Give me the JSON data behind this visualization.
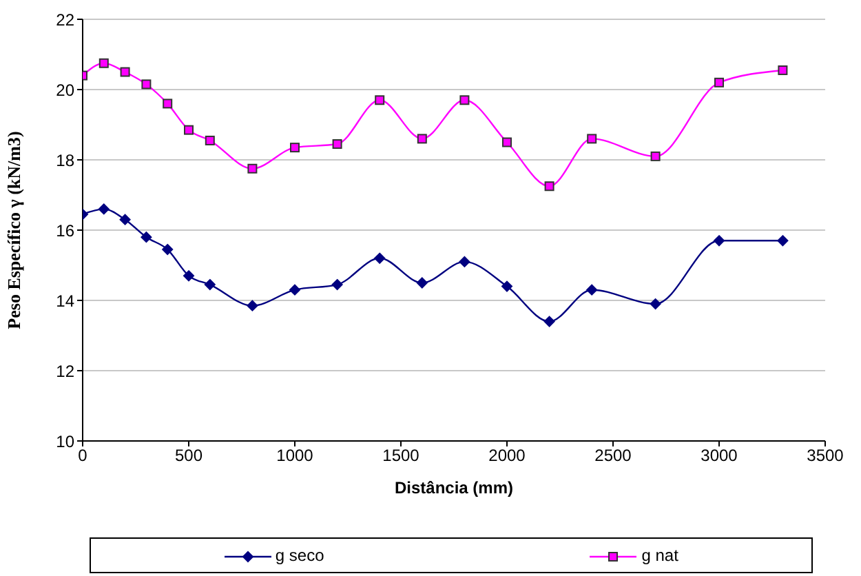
{
  "chart_data": {
    "type": "line",
    "xlabel": "Distância (mm)",
    "ylabel": "Peso Específico  γ (kN/m3)",
    "x": [
      0,
      100,
      200,
      300,
      400,
      500,
      600,
      800,
      1000,
      1200,
      1400,
      1600,
      1800,
      2000,
      2200,
      2400,
      2700,
      3000,
      3300
    ],
    "xlim": [
      0,
      3500
    ],
    "xticks": [
      0,
      500,
      1000,
      1500,
      2000,
      2500,
      3000,
      3500
    ],
    "ylim": [
      10,
      22
    ],
    "yticks": [
      10,
      12,
      14,
      16,
      18,
      20,
      22
    ],
    "grid": "y",
    "legend": "bottom",
    "series": [
      {
        "name": "g seco",
        "color": "#000080",
        "marker": "diamond",
        "values": [
          16.45,
          16.6,
          16.3,
          15.8,
          15.45,
          14.7,
          14.45,
          13.85,
          14.3,
          14.45,
          15.2,
          14.5,
          15.1,
          14.4,
          13.4,
          14.3,
          13.9,
          15.7,
          15.7
        ]
      },
      {
        "name": "g nat",
        "color": "#ff00ff",
        "marker": "square",
        "values": [
          20.4,
          20.75,
          20.5,
          20.15,
          19.6,
          18.85,
          18.55,
          17.75,
          18.35,
          18.45,
          19.7,
          18.6,
          19.7,
          18.5,
          17.25,
          18.6,
          18.1,
          20.2,
          20.55
        ]
      }
    ]
  }
}
